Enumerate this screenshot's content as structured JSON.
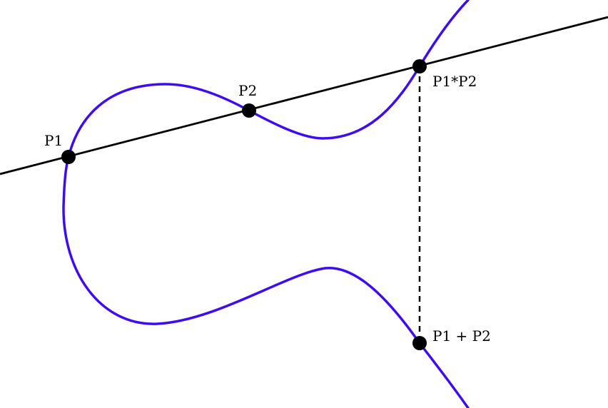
{
  "colors": {
    "curve": "#3d0cf0",
    "line": "#000000",
    "point": "#000000",
    "background": "#ffffff"
  },
  "labels": {
    "p1": "P1",
    "p2": "P2",
    "p1_star_p2": "P1*P2",
    "p1_plus_p2": "P1 + P2"
  }
}
